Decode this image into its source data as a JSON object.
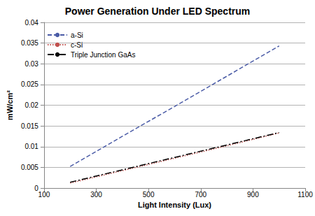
{
  "chart_data": {
    "type": "line",
    "title": "Power Generation Under LED Spectrum",
    "x_label": "Light Intensity (Lux)",
    "y_label": "mW/cm²",
    "x": [
      200,
      400,
      600,
      800,
      1000
    ],
    "series": [
      {
        "name": "a-Si",
        "color": "#4a5ba6",
        "line_style": "dashed",
        "values": [
          0.0052,
          0.0125,
          0.0197,
          0.027,
          0.0343
        ]
      },
      {
        "name": "c-Si",
        "color": "#c0504d",
        "line_style": "dotted",
        "values": [
          0.0012,
          0.0042,
          0.0072,
          0.0102,
          0.0133
        ]
      },
      {
        "name": "Triple Junction GaAs",
        "color": "#000000",
        "line_style": "dashdot",
        "values": [
          0.0014,
          0.0044,
          0.0074,
          0.0104,
          0.0134
        ]
      }
    ],
    "xlim": [
      100,
      1100
    ],
    "xticks": [
      100,
      300,
      500,
      700,
      900,
      1100
    ],
    "ylim": [
      0,
      0.04
    ],
    "yticks": [
      0,
      0.005,
      0.01,
      0.015,
      0.02,
      0.025,
      0.03,
      0.035,
      0.04
    ],
    "grid": true,
    "legend": "upper left"
  }
}
